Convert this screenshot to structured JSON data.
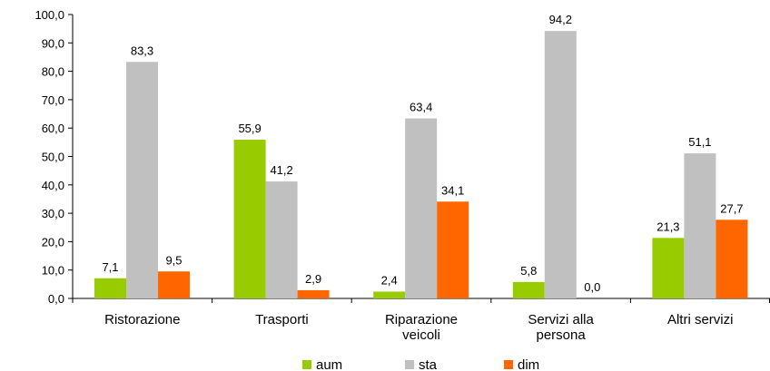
{
  "chart_data": {
    "type": "bar",
    "categories": [
      [
        "Ristorazione"
      ],
      [
        "Trasporti"
      ],
      [
        "Riparazione",
        "veicoli"
      ],
      [
        "Servizi alla",
        "persona"
      ],
      [
        "Altri servizi"
      ]
    ],
    "series": [
      {
        "name": "aum",
        "color": "#99cc00",
        "values": [
          7.1,
          55.9,
          2.4,
          5.8,
          21.3
        ],
        "labels": [
          "7,1",
          "55,9",
          "2,4",
          "5,8",
          "21,3"
        ]
      },
      {
        "name": "sta",
        "color": "#c0c0c0",
        "values": [
          83.3,
          41.2,
          63.4,
          94.2,
          51.1
        ],
        "labels": [
          "83,3",
          "41,2",
          "63,4",
          "94,2",
          "51,1"
        ]
      },
      {
        "name": "dim",
        "color": "#ff6600",
        "values": [
          9.5,
          2.9,
          34.1,
          0.0,
          27.7
        ],
        "labels": [
          "9,5",
          "2,9",
          "34,1",
          "0,0",
          "27,7"
        ]
      }
    ],
    "ylim": [
      0,
      100
    ],
    "yticks": [
      0,
      10,
      20,
      30,
      40,
      50,
      60,
      70,
      80,
      90,
      100
    ],
    "ytick_labels": [
      "0,0",
      "10,0",
      "20,0",
      "30,0",
      "40,0",
      "50,0",
      "60,0",
      "70,0",
      "80,0",
      "90,0",
      "100,0"
    ],
    "grid": false,
    "legend_position": "bottom"
  }
}
